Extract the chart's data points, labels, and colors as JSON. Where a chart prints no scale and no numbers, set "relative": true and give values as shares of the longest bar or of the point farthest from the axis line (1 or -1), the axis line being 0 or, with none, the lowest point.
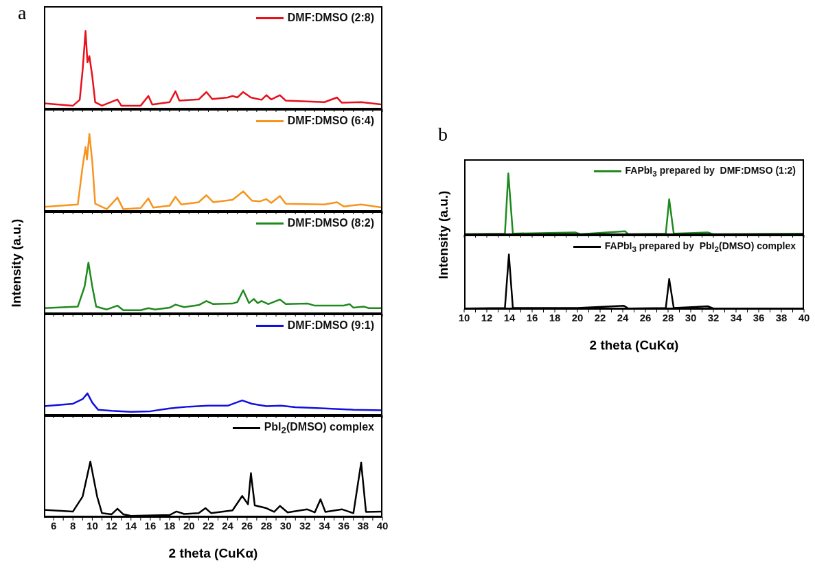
{
  "chart_data": [
    {
      "type": "line",
      "relative": true,
      "title": "a",
      "legend": "top right",
      "tick_labels": false,
      "xlim": [
        5,
        40
      ],
      "xticks": [
        6,
        {
          "value": 7,
          "label": null
        },
        8,
        {
          "value": 9,
          "label": null
        },
        10,
        {
          "value": 11,
          "label": null
        },
        12,
        {
          "value": 13,
          "label": null
        },
        14,
        {
          "value": 15,
          "label": null
        },
        16,
        {
          "value": 17,
          "label": null
        },
        18,
        {
          "value": 19,
          "label": null
        },
        20,
        {
          "value": 21,
          "label": null
        },
        22,
        {
          "value": 23,
          "label": null
        },
        24,
        {
          "value": 25,
          "label": null
        },
        26,
        {
          "value": 27,
          "label": null
        },
        28,
        {
          "value": 29,
          "label": null
        },
        30,
        {
          "value": 31,
          "label": null
        },
        32,
        {
          "value": 33,
          "label": null
        },
        34,
        {
          "value": 35,
          "label": null
        },
        36,
        {
          "value": 37,
          "label": null
        },
        38,
        {
          "value": 39,
          "label": null
        },
        40
      ],
      "series": [
        {
          "name": "DMF:DMSO (2:8)",
          "color": "#e8101a",
          "x": [
            5,
            8,
            8.7,
            9,
            9.3,
            9.5,
            9.7,
            10,
            10.3,
            11,
            12.6,
            13,
            15,
            15.8,
            16.2,
            18,
            18.6,
            19,
            21,
            21.8,
            22.4,
            24,
            24.5,
            25,
            25.6,
            26.4,
            27.5,
            28,
            28.5,
            29.4,
            30,
            34,
            35.3,
            35.8,
            37.8,
            40
          ],
          "values": [
            0.075,
            0.045,
            0.12,
            0.5,
            1,
            0.6,
            0.68,
            0.42,
            0.09,
            0.045,
            0.125,
            0.045,
            0.045,
            0.17,
            0.06,
            0.09,
            0.23,
            0.11,
            0.125,
            0.22,
            0.13,
            0.15,
            0.17,
            0.15,
            0.22,
            0.15,
            0.12,
            0.18,
            0.125,
            0.18,
            0.11,
            0.09,
            0.15,
            0.083,
            0.09,
            0.06
          ]
        }
      ]
    },
    {
      "type": "line",
      "relative": true,
      "legend": "top right",
      "tick_labels": false,
      "xlim": [
        5,
        40
      ],
      "xticks": [
        6,
        {
          "value": 7,
          "label": null
        },
        8,
        {
          "value": 9,
          "label": null
        },
        10,
        {
          "value": 11,
          "label": null
        },
        12,
        {
          "value": 13,
          "label": null
        },
        14,
        {
          "value": 15,
          "label": null
        },
        16,
        {
          "value": 17,
          "label": null
        },
        18,
        {
          "value": 19,
          "label": null
        },
        20,
        {
          "value": 21,
          "label": null
        },
        22,
        {
          "value": 23,
          "label": null
        },
        24,
        {
          "value": 25,
          "label": null
        },
        26,
        {
          "value": 27,
          "label": null
        },
        28,
        {
          "value": 29,
          "label": null
        },
        30,
        {
          "value": 31,
          "label": null
        },
        32,
        {
          "value": 33,
          "label": null
        },
        34,
        {
          "value": 35,
          "label": null
        },
        36,
        {
          "value": 37,
          "label": null
        },
        38,
        {
          "value": 39,
          "label": null
        },
        40
      ],
      "series": [
        {
          "name": "DMF:DMSO (6:4)",
          "color": "#f7941d",
          "x": [
            5,
            8.5,
            9,
            9.3,
            9.45,
            9.7,
            10,
            10.3,
            11.5,
            12.6,
            13.2,
            15,
            15.8,
            16.3,
            18,
            18.6,
            19.2,
            21,
            21.8,
            22.5,
            24.5,
            25.6,
            26.5,
            27.3,
            28,
            28.5,
            29.4,
            30,
            34,
            35.3,
            36,
            37.8,
            40
          ],
          "values": [
            0.06,
            0.09,
            0.58,
            0.83,
            0.67,
            1,
            0.64,
            0.1,
            0.03,
            0.18,
            0.03,
            0.045,
            0.17,
            0.05,
            0.075,
            0.19,
            0.09,
            0.12,
            0.21,
            0.12,
            0.15,
            0.26,
            0.14,
            0.13,
            0.16,
            0.11,
            0.2,
            0.1,
            0.09,
            0.12,
            0.065,
            0.09,
            0.05
          ]
        }
      ]
    },
    {
      "type": "line",
      "relative": true,
      "legend": "top right",
      "tick_labels": false,
      "ylabel": "Intensity (a.u.)",
      "xlim": [
        5,
        40
      ],
      "xticks": [
        6,
        {
          "value": 7,
          "label": null
        },
        8,
        {
          "value": 9,
          "label": null
        },
        10,
        {
          "value": 11,
          "label": null
        },
        12,
        {
          "value": 13,
          "label": null
        },
        14,
        {
          "value": 15,
          "label": null
        },
        16,
        {
          "value": 17,
          "label": null
        },
        18,
        {
          "value": 19,
          "label": null
        },
        20,
        {
          "value": 21,
          "label": null
        },
        22,
        {
          "value": 23,
          "label": null
        },
        24,
        {
          "value": 25,
          "label": null
        },
        26,
        {
          "value": 27,
          "label": null
        },
        28,
        {
          "value": 29,
          "label": null
        },
        30,
        {
          "value": 31,
          "label": null
        },
        32,
        {
          "value": 33,
          "label": null
        },
        34,
        {
          "value": 35,
          "label": null
        },
        36,
        {
          "value": 37,
          "label": null
        },
        38,
        {
          "value": 39,
          "label": null
        },
        40
      ],
      "series": [
        {
          "name": "DMF:DMSO (8:2)",
          "color": "#1e8a1e",
          "x": [
            5,
            8.5,
            9.2,
            9.6,
            10,
            10.4,
            11.5,
            12.6,
            13.2,
            15,
            15.8,
            16.5,
            18,
            18.6,
            19.5,
            21,
            21.8,
            22.5,
            24.5,
            25,
            25.6,
            26.2,
            26.7,
            27.1,
            27.5,
            28.2,
            29.4,
            30,
            32.3,
            33,
            36,
            36.6,
            37,
            38.1,
            38.6,
            40
          ],
          "values": [
            0.11,
            0.14,
            0.53,
            1,
            0.53,
            0.14,
            0.085,
            0.16,
            0.07,
            0.07,
            0.11,
            0.085,
            0.12,
            0.18,
            0.13,
            0.17,
            0.25,
            0.19,
            0.2,
            0.23,
            0.46,
            0.21,
            0.29,
            0.21,
            0.25,
            0.19,
            0.28,
            0.19,
            0.2,
            0.16,
            0.16,
            0.19,
            0.12,
            0.14,
            0.11,
            0.11
          ]
        }
      ]
    },
    {
      "type": "line",
      "relative": true,
      "legend": "top right",
      "tick_labels": false,
      "xlim": [
        5,
        40
      ],
      "xticks": [
        6,
        {
          "value": 7,
          "label": null
        },
        8,
        {
          "value": 9,
          "label": null
        },
        10,
        {
          "value": 11,
          "label": null
        },
        12,
        {
          "value": 13,
          "label": null
        },
        14,
        {
          "value": 15,
          "label": null
        },
        16,
        {
          "value": 17,
          "label": null
        },
        18,
        {
          "value": 19,
          "label": null
        },
        20,
        {
          "value": 21,
          "label": null
        },
        22,
        {
          "value": 23,
          "label": null
        },
        24,
        {
          "value": 25,
          "label": null
        },
        26,
        {
          "value": 27,
          "label": null
        },
        28,
        {
          "value": 29,
          "label": null
        },
        30,
        {
          "value": 31,
          "label": null
        },
        32,
        {
          "value": 33,
          "label": null
        },
        34,
        {
          "value": 35,
          "label": null
        },
        36,
        {
          "value": 37,
          "label": null
        },
        38,
        {
          "value": 39,
          "label": null
        },
        40
      ],
      "series": [
        {
          "name": "DMF:DMSO (9:1)",
          "color": "#1010e0",
          "x": [
            5,
            8,
            9,
            9.5,
            10,
            10.6,
            12,
            14,
            16,
            18,
            20,
            22,
            24,
            25.5,
            26.5,
            28,
            29.5,
            31,
            34,
            37,
            40
          ],
          "values": [
            0.42,
            0.53,
            0.74,
            1,
            0.58,
            0.26,
            0.21,
            0.16,
            0.19,
            0.32,
            0.4,
            0.44,
            0.44,
            0.68,
            0.53,
            0.42,
            0.44,
            0.37,
            0.32,
            0.26,
            0.23
          ]
        }
      ]
    },
    {
      "type": "line",
      "relative": true,
      "legend": "top right",
      "tick_labels": "x",
      "xlabel": "2 theta (CuKα)",
      "xlim": [
        5,
        40
      ],
      "xticks": [
        6,
        {
          "value": 7,
          "label": null
        },
        8,
        {
          "value": 9,
          "label": null
        },
        10,
        {
          "value": 11,
          "label": null
        },
        12,
        {
          "value": 13,
          "label": null
        },
        14,
        {
          "value": 15,
          "label": null
        },
        16,
        {
          "value": 17,
          "label": null
        },
        18,
        {
          "value": 19,
          "label": null
        },
        20,
        {
          "value": 21,
          "label": null
        },
        22,
        {
          "value": 23,
          "label": null
        },
        24,
        {
          "value": 25,
          "label": null
        },
        26,
        {
          "value": 27,
          "label": null
        },
        28,
        {
          "value": 29,
          "label": null
        },
        30,
        {
          "value": 31,
          "label": null
        },
        32,
        {
          "value": 33,
          "label": null
        },
        34,
        {
          "value": 35,
          "label": null
        },
        36,
        {
          "value": 37,
          "label": null
        },
        38,
        {
          "value": 39,
          "label": null
        },
        40
      ],
      "series": [
        {
          "name": "PbI$_{2}$(DMSO) complex",
          "color": "#000000",
          "x": [
            5,
            8,
            9,
            9.8,
            10.5,
            11,
            12,
            12.6,
            13.2,
            14,
            18,
            18.7,
            19.5,
            21,
            21.7,
            22.3,
            24.5,
            25.5,
            26.1,
            26.4,
            26.8,
            28,
            28.8,
            29.4,
            30.2,
            32.2,
            33,
            33.6,
            34.1,
            35.8,
            37,
            37.8,
            38.3,
            40
          ],
          "values": [
            0.13,
            0.1,
            0.37,
            1,
            0.37,
            0.07,
            0.05,
            0.15,
            0.05,
            0.023,
            0.037,
            0.1,
            0.056,
            0.07,
            0.16,
            0.07,
            0.12,
            0.38,
            0.23,
            0.79,
            0.21,
            0.16,
            0.093,
            0.2,
            0.084,
            0.14,
            0.084,
            0.32,
            0.093,
            0.14,
            0.07,
            0.98,
            0.093,
            0.1
          ]
        }
      ]
    },
    {
      "type": "line",
      "relative": true,
      "title": "b",
      "legend": "top right",
      "tick_labels": false,
      "ylabel": "Intensity (a.u.)",
      "xlim": [
        10,
        40
      ],
      "xticks": [
        10,
        {
          "value": 11,
          "label": null
        },
        12,
        {
          "value": 13,
          "label": null
        },
        14,
        {
          "value": 15,
          "label": null
        },
        16,
        {
          "value": 17,
          "label": null
        },
        18,
        {
          "value": 19,
          "label": null
        },
        20,
        {
          "value": 21,
          "label": null
        },
        22,
        {
          "value": 23,
          "label": null
        },
        24,
        {
          "value": 25,
          "label": null
        },
        26,
        {
          "value": 27,
          "label": null
        },
        28,
        {
          "value": 29,
          "label": null
        },
        30,
        {
          "value": 31,
          "label": null
        },
        32,
        {
          "value": 33,
          "label": null
        },
        34,
        {
          "value": 35,
          "label": null
        },
        36,
        {
          "value": 37,
          "label": null
        },
        38,
        {
          "value": 39,
          "label": null
        },
        40
      ],
      "series": [
        {
          "name": "FAPbI$_{3}$ prepared by  DMF:DMSO (1:2)",
          "color": "#1e8a1e",
          "x": [
            10,
            13.6,
            13.9,
            14.3,
            19.8,
            20.3,
            24.2,
            24.5,
            27.8,
            28.1,
            28.5,
            31.5,
            32,
            40
          ],
          "values": [
            0.01,
            0.02,
            1,
            0.02,
            0.04,
            0.01,
            0.06,
            0.01,
            0.02,
            0.58,
            0.02,
            0.04,
            0.01,
            0.02
          ]
        }
      ]
    },
    {
      "type": "line",
      "relative": true,
      "legend": "top right",
      "tick_labels": "x",
      "xlabel": "2 theta (CuKα)",
      "xlim": [
        10,
        40
      ],
      "xticks": [
        10,
        {
          "value": 11,
          "label": null
        },
        12,
        {
          "value": 13,
          "label": null
        },
        14,
        {
          "value": 15,
          "label": null
        },
        16,
        {
          "value": 17,
          "label": null
        },
        18,
        {
          "value": 19,
          "label": null
        },
        20,
        {
          "value": 21,
          "label": null
        },
        22,
        {
          "value": 23,
          "label": null
        },
        24,
        {
          "value": 25,
          "label": null
        },
        26,
        {
          "value": 27,
          "label": null
        },
        28,
        {
          "value": 29,
          "label": null
        },
        30,
        {
          "value": 31,
          "label": null
        },
        32,
        {
          "value": 33,
          "label": null
        },
        34,
        {
          "value": 35,
          "label": null
        },
        36,
        {
          "value": 37,
          "label": null
        },
        38,
        {
          "value": 39,
          "label": null
        },
        40
      ],
      "series": [
        {
          "name": "FAPbI$_{3}$ prepared by  PbI$_{2}$(DMSO) complex",
          "color": "#000000",
          "x": [
            10,
            13.6,
            13.95,
            14.3,
            20,
            24.1,
            24.5,
            27.8,
            28.1,
            28.5,
            31.5,
            32,
            40
          ],
          "values": [
            0.01,
            0.02,
            1,
            0.02,
            0.02,
            0.06,
            0.01,
            0.02,
            0.55,
            0.02,
            0.05,
            0.01,
            0.01
          ]
        }
      ]
    }
  ]
}
